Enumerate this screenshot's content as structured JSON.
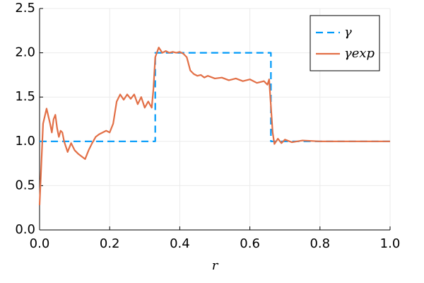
{
  "chart_data": {
    "type": "line",
    "x_label": "r",
    "xlim": [
      0,
      1
    ],
    "ylim": [
      0,
      2.5
    ],
    "xticks": [
      {
        "value": 0,
        "label": "0.0"
      },
      0.2,
      0.4,
      0.6,
      0.8,
      {
        "value": 1,
        "label": "1.0"
      }
    ],
    "yticks": [
      {
        "value": 0,
        "label": "0.0"
      },
      0.5,
      {
        "value": 1,
        "label": "1.0"
      },
      1.5,
      {
        "value": 2,
        "label": "2.0"
      },
      2.5
    ],
    "grid": true,
    "legend": "top-right",
    "series": [
      {
        "name": "γ",
        "color": "#009af9",
        "dashed": true,
        "x": [
          0,
          0.33,
          0.33,
          0.66,
          0.66,
          1.0
        ],
        "values": [
          1,
          1,
          2,
          2,
          1,
          1
        ]
      },
      {
        "name": "γexp",
        "color": "#e26f46",
        "dashed": false,
        "x": [
          0,
          0.01,
          0.02,
          0.03,
          0.035,
          0.04,
          0.045,
          0.05,
          0.055,
          0.06,
          0.065,
          0.07,
          0.08,
          0.09,
          0.1,
          0.11,
          0.12,
          0.13,
          0.14,
          0.15,
          0.16,
          0.17,
          0.18,
          0.19,
          0.2,
          0.21,
          0.22,
          0.23,
          0.24,
          0.25,
          0.26,
          0.27,
          0.28,
          0.29,
          0.3,
          0.31,
          0.32,
          0.325,
          0.33,
          0.34,
          0.35,
          0.36,
          0.37,
          0.38,
          0.39,
          0.4,
          0.41,
          0.42,
          0.43,
          0.44,
          0.45,
          0.46,
          0.47,
          0.48,
          0.5,
          0.52,
          0.54,
          0.56,
          0.58,
          0.6,
          0.62,
          0.64,
          0.65,
          0.655,
          0.66,
          0.665,
          0.67,
          0.68,
          0.69,
          0.7,
          0.72,
          0.75,
          0.8,
          0.9,
          1.0
        ],
        "values": [
          0.28,
          1.2,
          1.37,
          1.2,
          1.1,
          1.25,
          1.3,
          1.15,
          1.05,
          1.12,
          1.1,
          1.0,
          0.88,
          0.98,
          0.9,
          0.86,
          0.83,
          0.8,
          0.9,
          0.98,
          1.05,
          1.08,
          1.1,
          1.12,
          1.1,
          1.2,
          1.45,
          1.53,
          1.47,
          1.53,
          1.48,
          1.53,
          1.42,
          1.5,
          1.38,
          1.45,
          1.38,
          1.6,
          1.95,
          2.06,
          2.0,
          2.02,
          2.0,
          2.01,
          2.0,
          2.01,
          1.99,
          1.95,
          1.8,
          1.76,
          1.74,
          1.75,
          1.72,
          1.74,
          1.71,
          1.72,
          1.69,
          1.71,
          1.68,
          1.7,
          1.66,
          1.68,
          1.64,
          1.7,
          1.4,
          1.1,
          0.97,
          1.03,
          0.98,
          1.02,
          0.99,
          1.01,
          1.0,
          1.0,
          1.0
        ]
      }
    ]
  }
}
